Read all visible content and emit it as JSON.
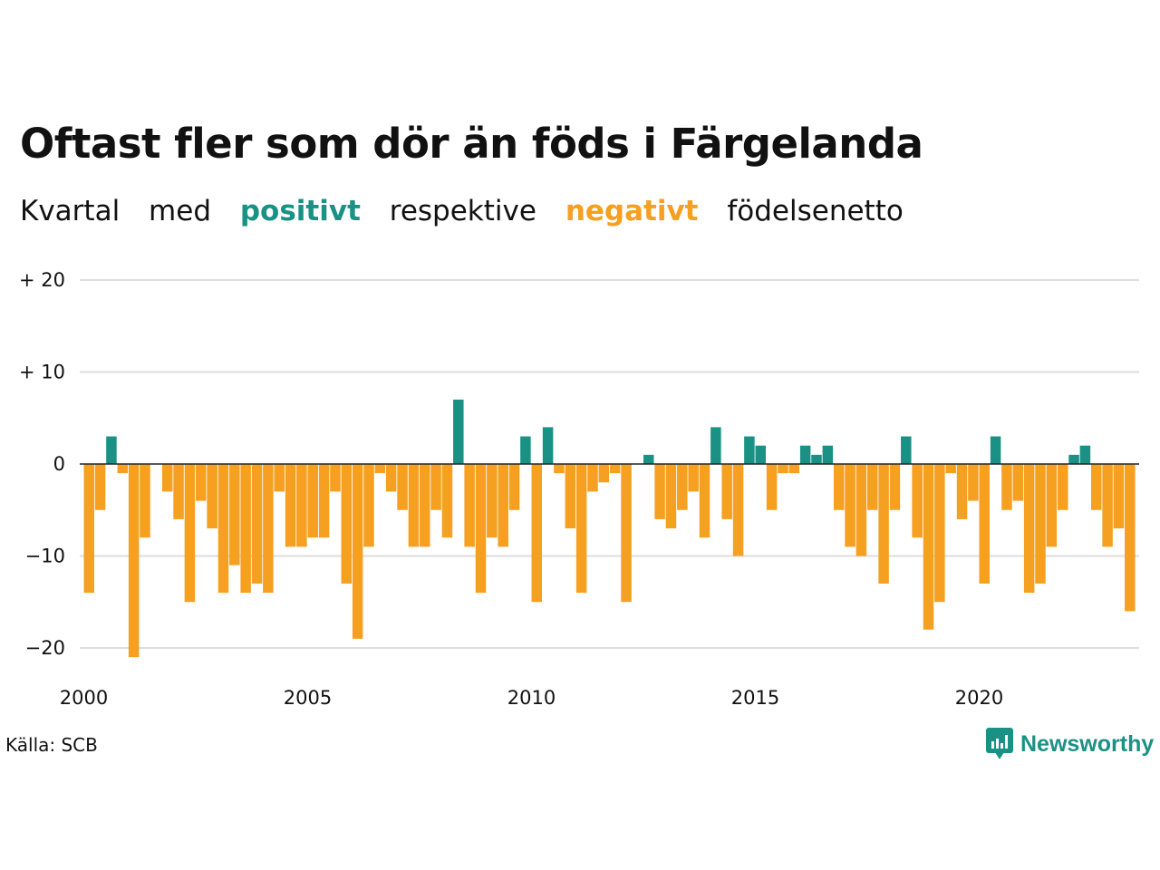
{
  "title": "Oftast fler som dör än föds i Färgelanda",
  "subtitle": {
    "w1": "Kvartal",
    "w2": "med",
    "positive": "positivt",
    "w3": "respektive",
    "negative": "negativt",
    "w4": "födelsenetto"
  },
  "source": "Källa: SCB",
  "brand": "Newsworthy",
  "colors": {
    "positive": "#1a9185",
    "negative": "#f5a020",
    "text": "#111111",
    "grid": "#dddddd",
    "baseline": "#222222"
  },
  "chart_data": {
    "type": "bar",
    "x_start": "2000 Q1",
    "x_interval": "quarter",
    "values": [
      -14,
      -5,
      3,
      -1,
      -21,
      -8,
      0,
      -3,
      -6,
      -15,
      -4,
      -7,
      -14,
      -11,
      -14,
      -13,
      -14,
      -3,
      -9,
      -9,
      -8,
      -8,
      -3,
      -13,
      -19,
      -9,
      -1,
      -3,
      -5,
      -9,
      -9,
      -5,
      -8,
      7,
      -9,
      -14,
      -8,
      -9,
      -5,
      3,
      -15,
      4,
      -1,
      -7,
      -14,
      -3,
      -2,
      -1,
      -15,
      0,
      1,
      -6,
      -7,
      -5,
      -3,
      -8,
      4,
      -6,
      -10,
      3,
      2,
      -5,
      -1,
      -1,
      2,
      1,
      2,
      -5,
      -9,
      -10,
      -5,
      -13,
      -5,
      3,
      -8,
      -18,
      -15,
      -1,
      -6,
      -4,
      -13,
      3,
      -5,
      -4,
      -14,
      -13,
      -9,
      -5,
      1,
      2,
      -5,
      -9,
      -7,
      -16
    ],
    "x_ticks": [
      "2000",
      "2005",
      "2010",
      "2015",
      "2020"
    ],
    "y_ticks": [
      {
        "value": 20,
        "label": "+ 20"
      },
      {
        "value": 10,
        "label": "+ 10"
      },
      {
        "value": 0,
        "label": "0"
      },
      {
        "value": -10,
        "label": "−10"
      },
      {
        "value": -20,
        "label": "−20"
      }
    ],
    "ylim": [
      -22,
      20
    ],
    "grid": true
  }
}
